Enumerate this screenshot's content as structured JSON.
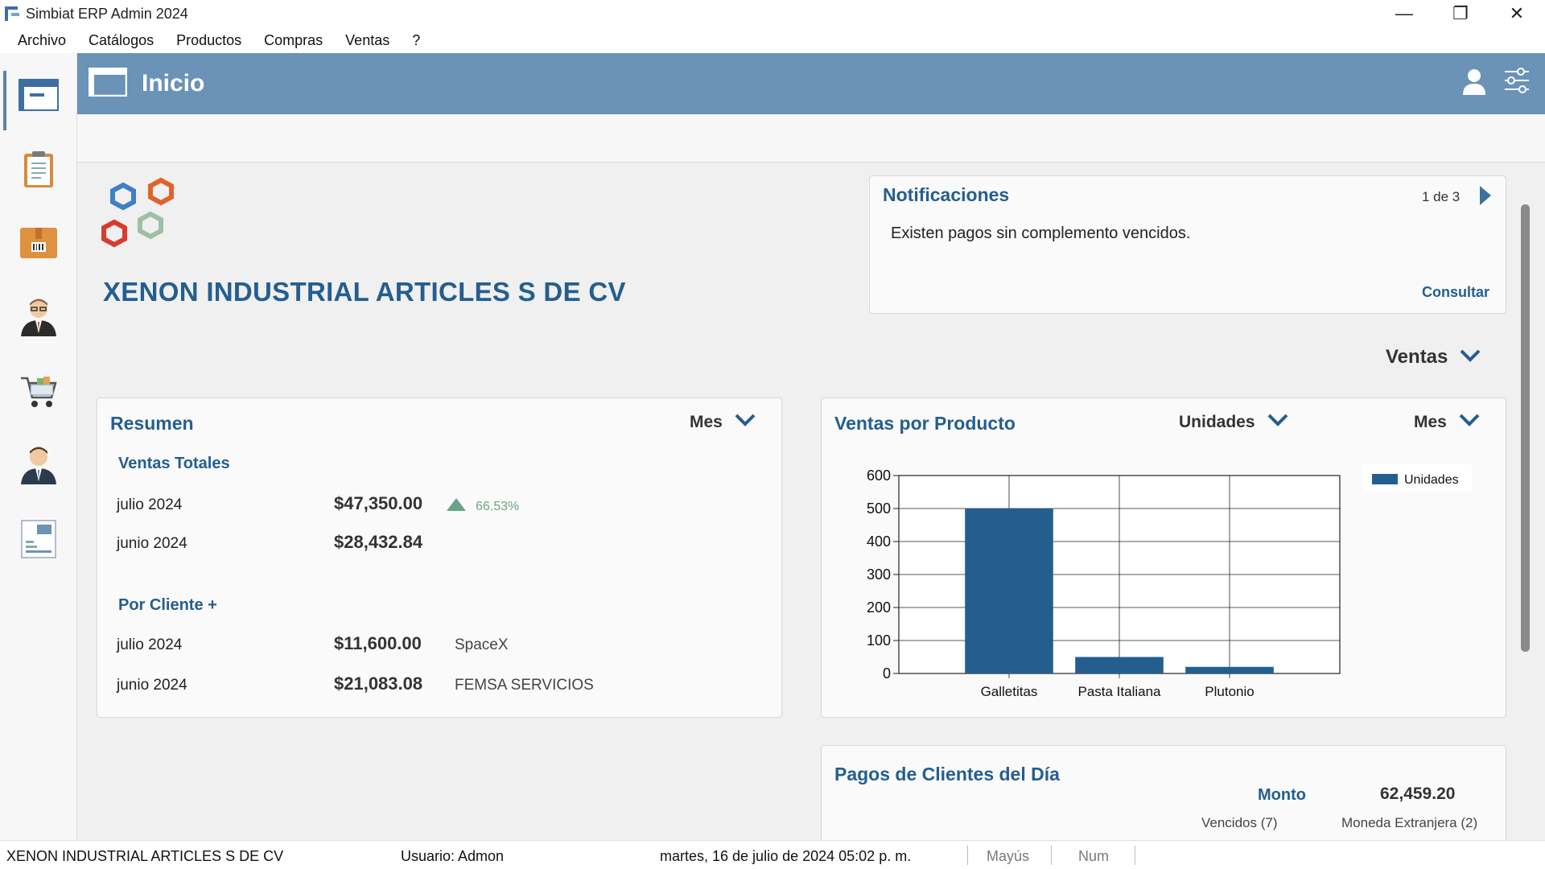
{
  "window": {
    "title": "Simbiat ERP Admin 2024",
    "minimize_glyph": "—",
    "restore_glyph": "❐",
    "close_glyph": "✕"
  },
  "menu": [
    "Archivo",
    "Catálogos",
    "Productos",
    "Compras",
    "Ventas",
    "?"
  ],
  "sidebar": [
    {
      "icon": "home-dashboard-icon",
      "active": true
    },
    {
      "icon": "clipboard-icon"
    },
    {
      "icon": "product-box-icon"
    },
    {
      "icon": "supplier-person-icon"
    },
    {
      "icon": "shopping-cart-icon"
    },
    {
      "icon": "customer-person-icon"
    },
    {
      "icon": "invoice-document-icon"
    }
  ],
  "header": {
    "title": "Inicio",
    "user_icon": "user-icon",
    "settings_icon": "sliders-icon"
  },
  "company": {
    "name": "XENON INDUSTRIAL ARTICLES S DE CV"
  },
  "notifications": {
    "title": "Notificaciones",
    "count": "1 de 3",
    "message": "Existen pagos sin complemento vencidos.",
    "link": "Consultar"
  },
  "ventas_dropdown": "Ventas",
  "resumen": {
    "title": "Resumen",
    "period": "Mes",
    "ventas_totales": {
      "title": "Ventas Totales",
      "rows": [
        {
          "label": "julio 2024",
          "amount": "$47,350.00",
          "change": "66.53%"
        },
        {
          "label": "junio 2024",
          "amount": "$28,432.84"
        }
      ]
    },
    "por_cliente": {
      "title": "Por Cliente +",
      "rows": [
        {
          "label": "julio 2024",
          "amount": "$11,600.00",
          "client": "SpaceX"
        },
        {
          "label": "junio 2024",
          "amount": "$21,083.08",
          "client": "FEMSA SERVICIOS"
        }
      ]
    }
  },
  "ventas_producto": {
    "title": "Ventas por Producto",
    "metric": "Unidades",
    "period": "Mes"
  },
  "chart_data": {
    "type": "bar",
    "categories": [
      "Galletitas",
      "Pasta Italiana",
      "Plutonio"
    ],
    "series": [
      {
        "name": "Unidades",
        "values": [
          500,
          50,
          20
        ],
        "color": "#245e8f"
      }
    ],
    "yticks": [
      0,
      100,
      200,
      300,
      400,
      500,
      600
    ],
    "ylim": [
      0,
      600
    ],
    "grid": true,
    "legend": "top-right"
  },
  "pagos": {
    "title": "Pagos de Clientes del Día",
    "monto_label": "Monto",
    "monto_value": "62,459.20",
    "vencidos": "Vencidos (7)",
    "moneda_extranjera": "Moneda Extranjera (2)"
  },
  "status": {
    "company": "XENON INDUSTRIAL ARTICLES S DE CV",
    "user": "Usuario: Admon",
    "datetime": "martes, 16 de julio de 2024 05:02 p. m.",
    "caps": "Mayús",
    "num": "Num"
  },
  "colors": {
    "accent": "#245e8f",
    "header": "#6b92b7",
    "bar": "#245e8f",
    "up": "#6aa486"
  }
}
